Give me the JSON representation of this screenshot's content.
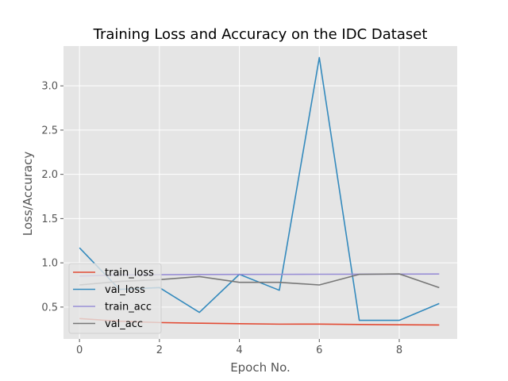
{
  "chart_data": {
    "type": "line",
    "title": "Training Loss and Accuracy on the IDC Dataset",
    "xlabel": "Epoch No.",
    "ylabel": "Loss/Accuracy",
    "x": [
      0,
      1,
      2,
      3,
      4,
      5,
      6,
      7,
      8,
      9
    ],
    "xlim": [
      -0.4,
      9.45
    ],
    "ylim": [
      0.14,
      3.45
    ],
    "xticks": [
      0,
      2,
      4,
      6,
      8
    ],
    "xtick_labels": [
      "0",
      "2",
      "4",
      "6",
      "8"
    ],
    "yticks": [
      0.5,
      1.0,
      1.5,
      2.0,
      2.5,
      3.0
    ],
    "ytick_labels": [
      "0.5",
      "1.0",
      "1.5",
      "2.0",
      "2.5",
      "3.0"
    ],
    "grid": true,
    "legend_position": "lower-left",
    "series": [
      {
        "name": "train_loss",
        "color": "#E24A33",
        "values": [
          0.37,
          0.34,
          0.325,
          0.318,
          0.312,
          0.307,
          0.308,
          0.303,
          0.3,
          0.298
        ]
      },
      {
        "name": "val_loss",
        "color": "#348ABD",
        "values": [
          1.17,
          0.7,
          0.72,
          0.44,
          0.87,
          0.69,
          3.32,
          0.35,
          0.35,
          0.54
        ]
      },
      {
        "name": "train_acc",
        "color": "#988ED5",
        "values": [
          0.85,
          0.863,
          0.866,
          0.868,
          0.869,
          0.87,
          0.871,
          0.872,
          0.873,
          0.874
        ]
      },
      {
        "name": "val_acc",
        "color": "#777777",
        "values": [
          0.75,
          0.79,
          0.81,
          0.845,
          0.78,
          0.78,
          0.75,
          0.87,
          0.875,
          0.72
        ]
      }
    ]
  }
}
